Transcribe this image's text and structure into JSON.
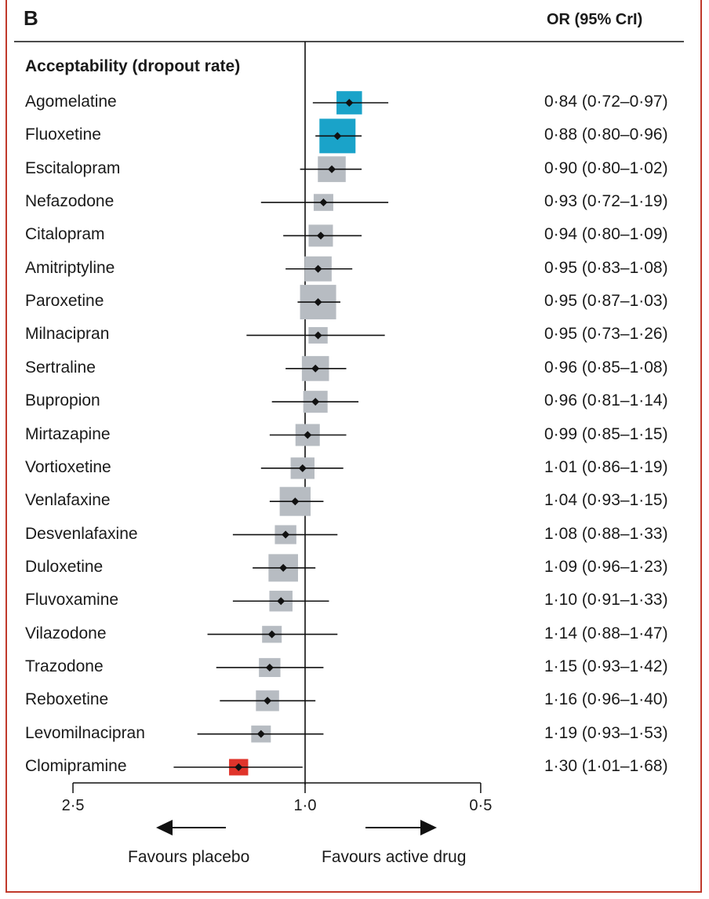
{
  "panel": {
    "letter": "B",
    "column_header": "OR (95% CrI)",
    "section_title": "Acceptability (dropout rate)"
  },
  "colors": {
    "best_two": "#1aa3c9",
    "neutral": "#b7bcc2",
    "worst": "#e0342b",
    "frame": "#c0392b",
    "line": "#111111"
  },
  "directions": {
    "left": "Favours placebo",
    "right": "Favours active drug"
  },
  "chart_data": {
    "type": "forest",
    "title": "Acceptability (dropout rate)",
    "measure": "OR (95% CrI)",
    "x_axis": {
      "scale": "log",
      "reversed": true,
      "ticks": [
        2.5,
        1.0,
        0.5
      ],
      "tick_labels": [
        "2·5",
        "1·0",
        "0·5"
      ],
      "reference": 1.0
    },
    "rows": [
      {
        "drug": "Agomelatine",
        "or": 0.84,
        "lo": 0.72,
        "hi": 0.97,
        "label": "0·84 (0·72–0·97)",
        "color": "best_two",
        "weight": 0.55
      },
      {
        "drug": "Fluoxetine",
        "or": 0.88,
        "lo": 0.8,
        "hi": 0.96,
        "label": "0·88 (0·80–0·96)",
        "color": "best_two",
        "weight": 1.0
      },
      {
        "drug": "Escitalopram",
        "or": 0.9,
        "lo": 0.8,
        "hi": 1.02,
        "label": "0·90 (0·80–1·02)",
        "color": "neutral",
        "weight": 0.65
      },
      {
        "drug": "Nefazodone",
        "or": 0.93,
        "lo": 0.72,
        "hi": 1.19,
        "label": "0·93 (0·72–1·19)",
        "color": "neutral",
        "weight": 0.3
      },
      {
        "drug": "Citalopram",
        "or": 0.94,
        "lo": 0.8,
        "hi": 1.09,
        "label": "0·94 (0·80–1·09)",
        "color": "neutral",
        "weight": 0.5
      },
      {
        "drug": "Amitriptyline",
        "or": 0.95,
        "lo": 0.83,
        "hi": 1.08,
        "label": "0·95 (0·83–1·08)",
        "color": "neutral",
        "weight": 0.62
      },
      {
        "drug": "Paroxetine",
        "or": 0.95,
        "lo": 0.87,
        "hi": 1.03,
        "label": "0·95 (0·87–1·03)",
        "color": "neutral",
        "weight": 1.0
      },
      {
        "drug": "Milnacipran",
        "or": 0.95,
        "lo": 0.73,
        "hi": 1.26,
        "label": "0·95 (0·73–1·26)",
        "color": "neutral",
        "weight": 0.28
      },
      {
        "drug": "Sertraline",
        "or": 0.96,
        "lo": 0.85,
        "hi": 1.08,
        "label": "0·96 (0·85–1·08)",
        "color": "neutral",
        "weight": 0.62
      },
      {
        "drug": "Bupropion",
        "or": 0.96,
        "lo": 0.81,
        "hi": 1.14,
        "label": "0·96 (0·81–1·14)",
        "color": "neutral",
        "weight": 0.5
      },
      {
        "drug": "Mirtazapine",
        "or": 0.99,
        "lo": 0.85,
        "hi": 1.15,
        "label": "0·99 (0·85–1·15)",
        "color": "neutral",
        "weight": 0.5
      },
      {
        "drug": "Vortioxetine",
        "or": 1.01,
        "lo": 0.86,
        "hi": 1.19,
        "label": "1·01 (0·86–1·19)",
        "color": "neutral",
        "weight": 0.48
      },
      {
        "drug": "Venlafaxine",
        "or": 1.04,
        "lo": 0.93,
        "hi": 1.15,
        "label": "1·04 (0·93–1·15)",
        "color": "neutral",
        "weight": 0.78
      },
      {
        "drug": "Desvenlafaxine",
        "or": 1.08,
        "lo": 0.88,
        "hi": 1.33,
        "label": "1·08 (0·88–1·33)",
        "color": "neutral",
        "weight": 0.38
      },
      {
        "drug": "Duloxetine",
        "or": 1.09,
        "lo": 0.96,
        "hi": 1.23,
        "label": "1·09 (0·96–1·23)",
        "color": "neutral",
        "weight": 0.72
      },
      {
        "drug": "Fluvoxamine",
        "or": 1.1,
        "lo": 0.91,
        "hi": 1.33,
        "label": "1·10 (0·91–1·33)",
        "color": "neutral",
        "weight": 0.45
      },
      {
        "drug": "Vilazodone",
        "or": 1.14,
        "lo": 0.88,
        "hi": 1.47,
        "label": "1·14 (0·88–1·47)",
        "color": "neutral",
        "weight": 0.3
      },
      {
        "drug": "Trazodone",
        "or": 1.15,
        "lo": 0.93,
        "hi": 1.42,
        "label": "1·15 (0·93–1·42)",
        "color": "neutral",
        "weight": 0.38
      },
      {
        "drug": "Reboxetine",
        "or": 1.16,
        "lo": 0.96,
        "hi": 1.4,
        "label": "1·16 (0·96–1·40)",
        "color": "neutral",
        "weight": 0.45
      },
      {
        "drug": "Levomilnacipran",
        "or": 1.19,
        "lo": 0.93,
        "hi": 1.53,
        "label": "1·19 (0·93–1·53)",
        "color": "neutral",
        "weight": 0.3
      },
      {
        "drug": "Clomipramine",
        "or": 1.3,
        "lo": 1.01,
        "hi": 1.68,
        "label": "1·30 (1·01–1·68)",
        "color": "worst",
        "weight": 0.28
      }
    ]
  }
}
